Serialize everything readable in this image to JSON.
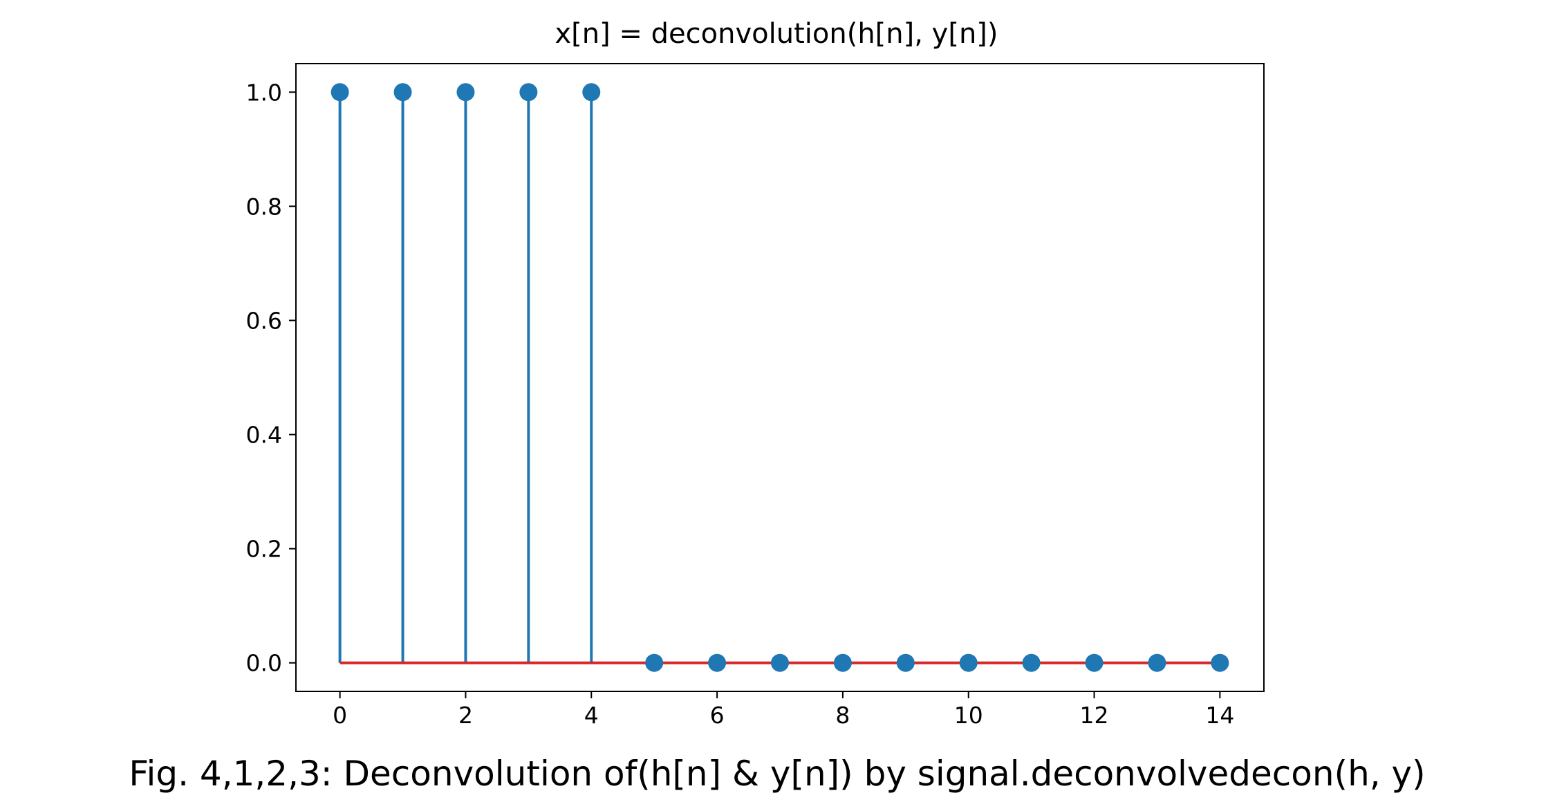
{
  "figure": {
    "caption": "Fig. 4,1,2,3: Deconvolution of(h[n] & y[n]) by signal.deconvolvedecon(h, y)"
  },
  "chart_data": {
    "type": "stem",
    "title": "x[n] = deconvolution(h[n], y[n])",
    "xlabel": "",
    "ylabel": "",
    "x": [
      0,
      1,
      2,
      3,
      4,
      5,
      6,
      7,
      8,
      9,
      10,
      11,
      12,
      13,
      14
    ],
    "y": [
      1.0,
      1.0,
      1.0,
      1.0,
      1.0,
      0.0,
      0.0,
      0.0,
      0.0,
      0.0,
      0.0,
      0.0,
      0.0,
      0.0,
      0.0
    ],
    "xlim": [
      -0.7,
      14.7
    ],
    "ylim": [
      -0.05,
      1.05
    ],
    "xticks": [
      0,
      2,
      4,
      6,
      8,
      10,
      12,
      14
    ],
    "yticks": [
      0.0,
      0.2,
      0.4,
      0.6,
      0.8,
      1.0
    ],
    "ytick_labels": [
      "0.0",
      "0.2",
      "0.4",
      "0.6",
      "0.8",
      "1.0"
    ],
    "grid": false,
    "colors": {
      "stem": "#1f77b4",
      "baseline": "#d62728"
    }
  }
}
